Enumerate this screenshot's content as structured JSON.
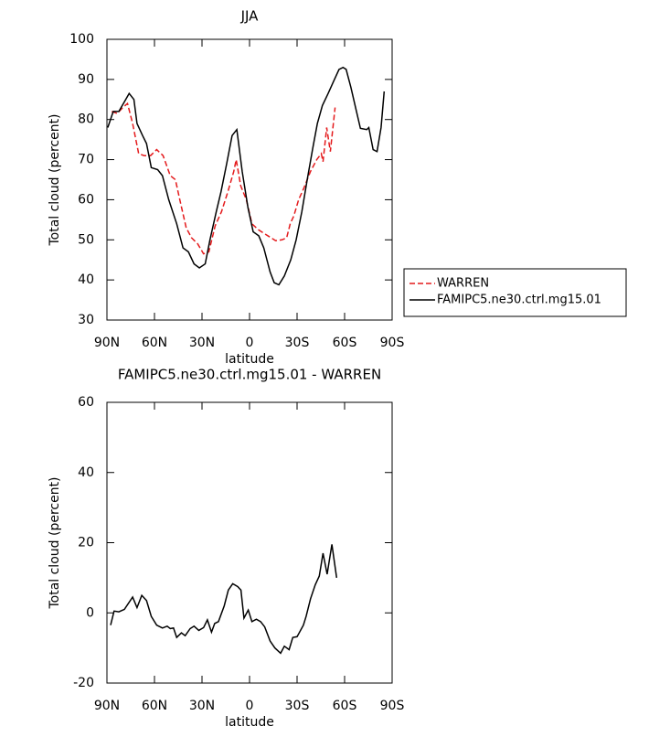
{
  "chart_data": [
    {
      "type": "line",
      "title": "JJA",
      "xlabel": "latitude",
      "ylabel": "Total cloud (percent)",
      "xlim": [
        90,
        -90
      ],
      "xticks": [
        {
          "value": 90,
          "label": "90N"
        },
        {
          "value": 60,
          "label": "60N"
        },
        {
          "value": 30,
          "label": "30N"
        },
        0,
        {
          "value": -30,
          "label": "30S"
        },
        {
          "value": -60,
          "label": "60S"
        },
        {
          "value": -90,
          "label": "90S"
        }
      ],
      "ylim": [
        30,
        100
      ],
      "yticks": [
        30,
        40,
        50,
        60,
        70,
        80,
        90,
        100
      ],
      "legend": "right",
      "series": [
        {
          "name": "WARREN",
          "color": "#e41a1c",
          "style": "dashed",
          "x": [
            87,
            83.5,
            80,
            77,
            73.8,
            70,
            66.5,
            62.5,
            58.6,
            54.6,
            50,
            46.8,
            44,
            40,
            36.6,
            32.7,
            29,
            25.7,
            21.7,
            17.7,
            13.7,
            10,
            8.4,
            5.6,
            2,
            -1.5,
            -5.6,
            -9.6,
            -13.6,
            -16.5,
            -20.4,
            -23.4,
            -25.7,
            -28,
            -31,
            -34.4,
            -38.4,
            -42.4,
            -45.3,
            -46.4,
            -48.7,
            -51,
            -54
          ],
          "values": [
            82,
            81.5,
            83,
            84,
            79,
            71.5,
            71,
            71,
            72.5,
            71,
            66,
            65,
            60,
            53,
            50.5,
            49,
            46.5,
            47,
            53.5,
            57,
            62,
            67,
            70,
            63.5,
            60,
            54,
            52.5,
            51.5,
            50.5,
            49.8,
            50,
            50.5,
            54,
            56,
            60,
            63,
            67,
            70,
            71.5,
            69.5,
            78,
            72,
            83
          ]
        },
        {
          "name": "FAMIPC5.ne30.ctrl.mg15.01",
          "color": "#000000",
          "style": "solid",
          "x": [
            89.5,
            86,
            82.5,
            79.6,
            76,
            73,
            71,
            67.5,
            65,
            62,
            58,
            55,
            51,
            46,
            42,
            38.6,
            35,
            31.7,
            28,
            25,
            21,
            18,
            14.4,
            11,
            8,
            4.6,
            1,
            -2.3,
            -5.8,
            -9,
            -13,
            -15.6,
            -18.5,
            -22,
            -26,
            -29.4,
            -33,
            -36.4,
            -40,
            -42.8,
            -46,
            -49.6,
            -53,
            -56.5,
            -59,
            -61,
            -64,
            -67.5,
            -70,
            -74,
            -75.3,
            -78,
            -80.5,
            -83,
            -85
          ],
          "values": [
            78,
            82,
            82,
            84,
            86.5,
            85,
            79,
            76,
            74,
            68,
            67.5,
            66,
            60,
            54,
            48,
            47,
            44,
            43,
            44,
            50,
            57,
            62,
            69,
            76,
            77.5,
            67,
            58,
            52,
            51,
            48,
            42,
            39.3,
            38.8,
            41,
            45,
            50,
            57,
            65,
            73,
            79,
            83.5,
            86.5,
            89.5,
            92.5,
            93,
            92.5,
            88,
            82,
            77.8,
            77.5,
            78,
            72.5,
            72,
            78,
            87
          ]
        }
      ]
    },
    {
      "type": "line",
      "title": "FAMIPC5.ne30.ctrl.mg15.01 - WARREN",
      "xlabel": "latitude",
      "ylabel": "Total cloud (percent)",
      "xlim": [
        90,
        -90
      ],
      "xticks": [
        {
          "value": 90,
          "label": "90N"
        },
        {
          "value": 60,
          "label": "60N"
        },
        {
          "value": 30,
          "label": "30N"
        },
        0,
        {
          "value": -30,
          "label": "30S"
        },
        {
          "value": -60,
          "label": "60S"
        },
        {
          "value": -90,
          "label": "90S"
        }
      ],
      "ylim": [
        -20,
        60
      ],
      "yticks": [
        -20,
        0,
        20,
        40,
        60
      ],
      "series": [
        {
          "color": "#000000",
          "style": "solid",
          "x": [
            87.7,
            85.5,
            82.5,
            79,
            73.8,
            71,
            68,
            65,
            62,
            58.6,
            55,
            52,
            50,
            48,
            46,
            43,
            40.6,
            37.5,
            35,
            32,
            29,
            26.6,
            24,
            22,
            19.6,
            16,
            13.4,
            10.6,
            7.5,
            5.4,
            3.5,
            0.8,
            -1.5,
            -4.3,
            -7,
            -9.6,
            -13,
            -16,
            -19.6,
            -22,
            -25,
            -27.3,
            -30,
            -34,
            -35.7,
            -38.5,
            -41.5,
            -44,
            -46.4,
            -49,
            -52,
            -55
          ],
          "values": [
            -3.5,
            0.5,
            0.3,
            1,
            4.5,
            1.5,
            5,
            3.5,
            -1,
            -3.5,
            -4.3,
            -3.8,
            -4.5,
            -4.3,
            -7,
            -5.7,
            -6.5,
            -4.5,
            -3.8,
            -5,
            -4.2,
            -2,
            -5.5,
            -3,
            -2.5,
            2,
            6.5,
            8.3,
            7.5,
            6.5,
            -1.5,
            0.8,
            -2.5,
            -1.8,
            -2.5,
            -4,
            -8,
            -10,
            -11.5,
            -9.5,
            -10.5,
            -7,
            -6.8,
            -3.5,
            -1,
            4,
            8,
            10.5,
            17,
            11,
            19.5,
            10
          ]
        }
      ]
    }
  ]
}
